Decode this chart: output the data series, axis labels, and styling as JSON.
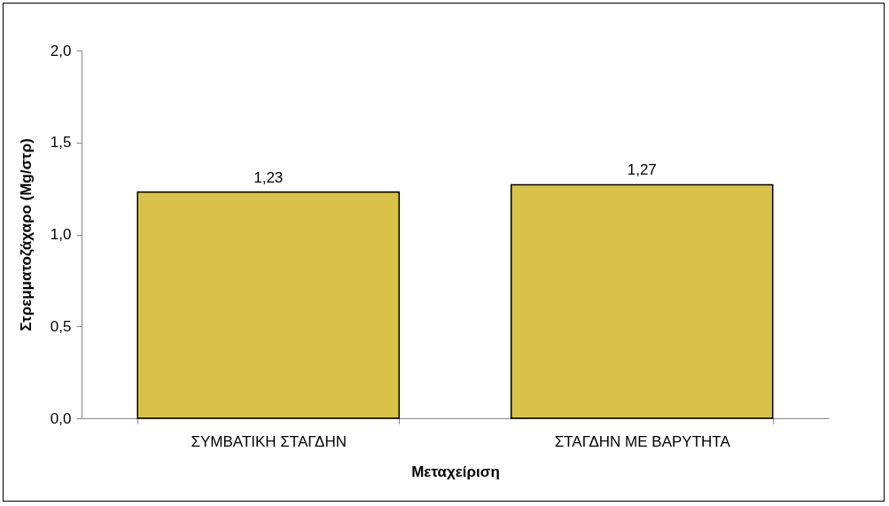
{
  "chart_data": {
    "type": "bar",
    "xlabel": "Μεταχείριση",
    "ylabel": "Στρεμματοζάχαρο (Mg/στρ)",
    "categories": [
      "ΣΥΜΒΑΤΙΚΗ ΣΤΑΓΔΗΝ",
      "ΣΤΑΓΔΗΝ ΜΕ ΒΑΡΥΤΗΤΑ"
    ],
    "values": [
      1.23,
      1.27
    ],
    "value_labels": [
      "1,23",
      "1,27"
    ],
    "color": "#d9c24a",
    "ylim": [
      0,
      2
    ],
    "yticks": [
      {
        "value": 0,
        "label": "0,0"
      },
      {
        "value": 0.5,
        "label": "0,5"
      },
      {
        "value": 1,
        "label": "1,0"
      },
      {
        "value": 1.5,
        "label": "1,5"
      },
      {
        "value": 2,
        "label": "2,0"
      }
    ],
    "grid": false
  }
}
